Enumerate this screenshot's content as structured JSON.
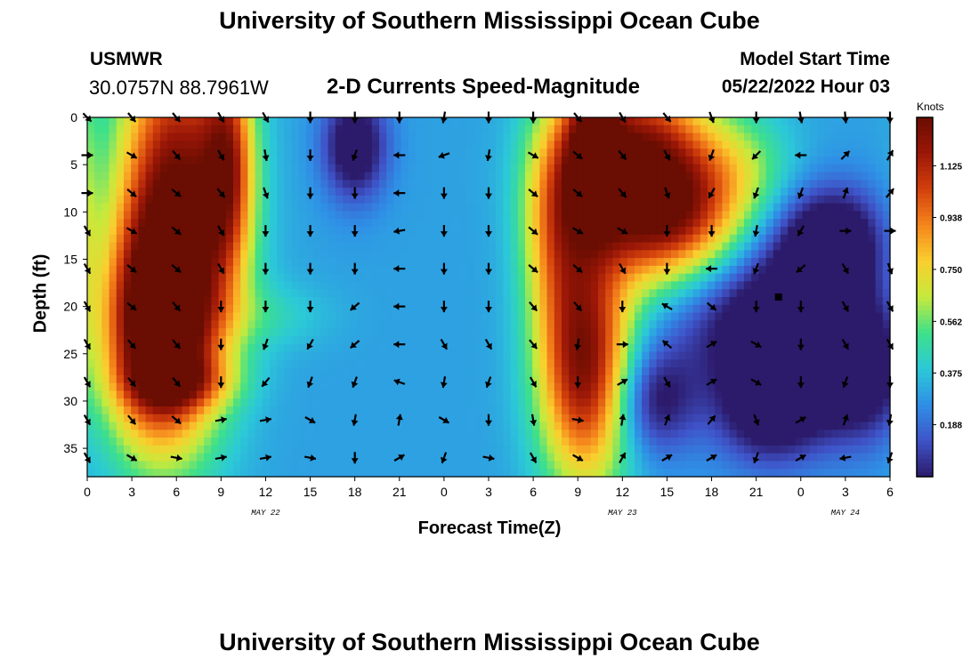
{
  "header": {
    "title": "University of Southern Mississippi Ocean Cube",
    "station": "USMWR",
    "coords": "30.0757N  88.7961W",
    "subtitle": "2-D Currents Speed-Magnitude",
    "model_label": "Model Start Time",
    "model_time": "05/22/2022 Hour 03"
  },
  "footer": {
    "title": "University of Southern Mississippi Ocean Cube"
  },
  "colorbar": {
    "units": "Knots",
    "min": 0.0,
    "max": 1.3,
    "ticks": [
      "0.188",
      "0.375",
      "0.562",
      "0.750",
      "0.938",
      "1.125"
    ],
    "tick_values": [
      0.188,
      0.375,
      0.562,
      0.75,
      0.938,
      1.125
    ],
    "colors": [
      "#2c1a6b",
      "#3f53c8",
      "#2f8fe6",
      "#2bc9d8",
      "#3ee08a",
      "#c6ea3c",
      "#f9cf2e",
      "#f5851c",
      "#d3400c",
      "#9b1707",
      "#6a0d02"
    ]
  },
  "chart_data": {
    "type": "heatmap",
    "title": "2-D Currents Speed-Magnitude",
    "xlabel": "Forecast Time(Z)",
    "ylabel": "Depth (ft)",
    "x_ticks": [
      "0",
      "3",
      "6",
      "9",
      "12",
      "15",
      "18",
      "21",
      "0",
      "3",
      "6",
      "9",
      "12",
      "15",
      "18",
      "21",
      "0",
      "3",
      "6"
    ],
    "x_range_hours": [
      0,
      54
    ],
    "day_labels": [
      {
        "label": "MAY 22",
        "hour": 12
      },
      {
        "label": "MAY 23",
        "hour": 36
      },
      {
        "label": "MAY 24",
        "hour": 51
      }
    ],
    "y_ticks": [
      0,
      5,
      10,
      15,
      20,
      25,
      30,
      35
    ],
    "ylim": [
      0,
      38
    ],
    "value_units": "Knots",
    "anchors": [
      {
        "t": 0,
        "d": 10,
        "v": 0.5,
        "st": 0.6,
        "sd": 12
      },
      {
        "t": 6,
        "d": 10,
        "v": 1.3,
        "st": 2.8,
        "sd": 14
      },
      {
        "t": 4.5,
        "d": 23,
        "v": 1.15,
        "st": 2.5,
        "sd": 8
      },
      {
        "t": 6.5,
        "d": 28,
        "v": 0.6,
        "st": 2.5,
        "sd": 2
      },
      {
        "t": 9.5,
        "d": 5,
        "v": 0.9,
        "st": 1.2,
        "sd": 8
      },
      {
        "t": 12,
        "d": 21,
        "v": 0.42,
        "st": 3,
        "sd": 2.5
      },
      {
        "t": 18,
        "d": 3,
        "v": -0.12,
        "st": 1.5,
        "sd": 4
      },
      {
        "t": 21,
        "d": 33,
        "v": 0.3,
        "st": 1,
        "sd": 3
      },
      {
        "t": 33.5,
        "d": 26,
        "v": 1.25,
        "st": 2.2,
        "sd": 9
      },
      {
        "t": 31.5,
        "d": 10,
        "v": 0.75,
        "st": 1.6,
        "sd": 8
      },
      {
        "t": 34,
        "d": 3,
        "v": 0.9,
        "st": 1.3,
        "sd": 6
      },
      {
        "t": 37,
        "d": 5,
        "v": 1.25,
        "st": 3.5,
        "sd": 7
      },
      {
        "t": 40,
        "d": 11,
        "v": 0.85,
        "st": 3.5,
        "sd": 5
      },
      {
        "t": 44,
        "d": 5,
        "v": 0.5,
        "st": 2.5,
        "sd": 4
      },
      {
        "t": 46,
        "d": 21,
        "v": -0.17,
        "st": 4.5,
        "sd": 6
      },
      {
        "t": 46,
        "d": 31,
        "v": -0.09,
        "st": 2.5,
        "sd": 4
      },
      {
        "t": 50,
        "d": 13,
        "v": -0.13,
        "st": 2.5,
        "sd": 4
      },
      {
        "t": 52,
        "d": 27,
        "v": -0.12,
        "st": 2.5,
        "sd": 5
      },
      {
        "t": 54,
        "d": 20,
        "v": 0.35,
        "st": 0.8,
        "sd": 12
      },
      {
        "t": 38,
        "d": 30,
        "v": -0.03,
        "st": 2,
        "sd": 4
      }
    ],
    "baseline_value": 0.3,
    "vectors": {
      "times": [
        0,
        3,
        6,
        9,
        12,
        15,
        18,
        21,
        24,
        27,
        30,
        33,
        36,
        39,
        42,
        45,
        48,
        51,
        54
      ],
      "depths": [
        0,
        4,
        8,
        12,
        16,
        20,
        24,
        28,
        32,
        36
      ],
      "directions_deg": [
        [
          135,
          140,
          140,
          150,
          150,
          180,
          180,
          180,
          190,
          180,
          180,
          140,
          150,
          140,
          160,
          180,
          170,
          175,
          180
        ],
        [
          90,
          120,
          140,
          150,
          170,
          180,
          200,
          270,
          250,
          190,
          120,
          130,
          140,
          150,
          200,
          225,
          270,
          45,
          30
        ],
        [
          90,
          130,
          130,
          140,
          160,
          180,
          180,
          270,
          180,
          180,
          130,
          130,
          140,
          160,
          210,
          200,
          200,
          20,
          40
        ],
        [
          150,
          120,
          130,
          150,
          180,
          180,
          180,
          260,
          180,
          180,
          130,
          120,
          120,
          180,
          180,
          190,
          210,
          90,
          90
        ],
        [
          150,
          130,
          130,
          150,
          180,
          180,
          180,
          270,
          180,
          180,
          130,
          130,
          150,
          180,
          270,
          200,
          230,
          150,
          160
        ],
        [
          150,
          130,
          140,
          180,
          180,
          180,
          230,
          270,
          180,
          180,
          140,
          140,
          180,
          300,
          130,
          180,
          180,
          150,
          150
        ],
        [
          150,
          140,
          140,
          180,
          200,
          210,
          230,
          270,
          150,
          150,
          140,
          190,
          90,
          310,
          60,
          120,
          180,
          150,
          150
        ],
        [
          150,
          140,
          140,
          180,
          220,
          200,
          200,
          290,
          190,
          200,
          150,
          180,
          60,
          150,
          60,
          120,
          180,
          200,
          180
        ],
        [
          150,
          140,
          130,
          80,
          80,
          120,
          190,
          10,
          120,
          180,
          170,
          100,
          10,
          20,
          40,
          160,
          60,
          20,
          190
        ],
        [
          150,
          120,
          100,
          80,
          80,
          100,
          180,
          60,
          200,
          100,
          150,
          120,
          30,
          60,
          60,
          200,
          60,
          260,
          200
        ]
      ]
    },
    "marker": {
      "t": 46.5,
      "d": 19
    }
  }
}
